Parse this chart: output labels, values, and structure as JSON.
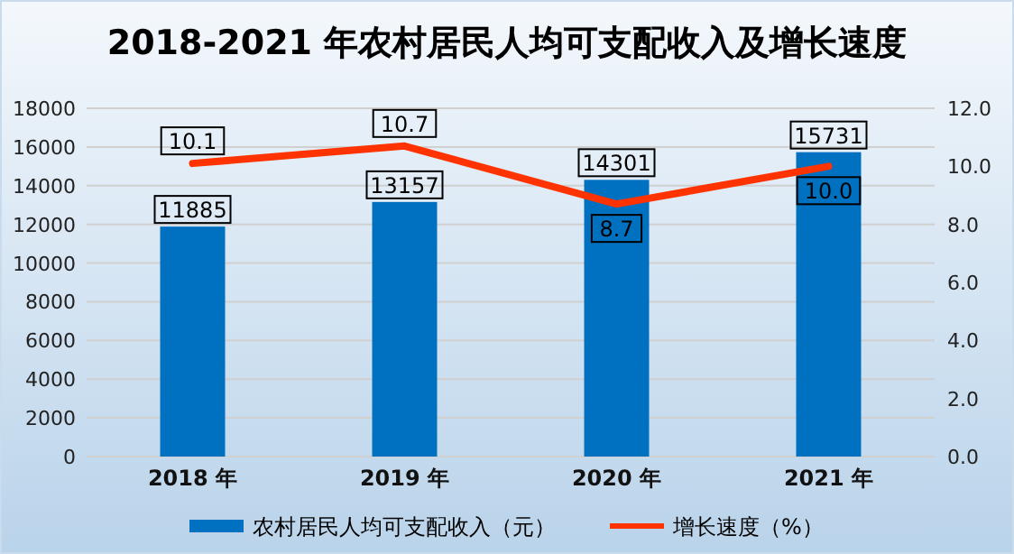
{
  "chart_data": {
    "type": "bar",
    "title": "2018-2021 年农村居民人均可支配收入及增长速度",
    "categories": [
      "2018 年",
      "2019 年",
      "2020 年",
      "2021 年"
    ],
    "series": [
      {
        "name": "农村居民人均可支配收入（元）",
        "color": "#0070c0",
        "values": [
          11885,
          13157,
          14301,
          15731
        ],
        "value_labels": [
          "11885",
          "13157",
          "14301",
          "15731"
        ]
      },
      {
        "name": "增长速度（%）",
        "type": "line",
        "axis": "y2",
        "color": "#ff3300",
        "values": [
          10.1,
          10.7,
          8.7,
          10.0
        ],
        "value_labels": [
          "10.1",
          "10.7",
          "8.7",
          "10.0"
        ]
      }
    ],
    "ylim": [
      0,
      18000
    ],
    "yticks": [
      0,
      2000,
      4000,
      6000,
      8000,
      10000,
      12000,
      14000,
      16000,
      18000
    ],
    "y2lim": [
      0,
      12
    ],
    "y2ticks": [
      {
        "value": 0,
        "label": "0.0"
      },
      {
        "value": 2,
        "label": "2.0"
      },
      {
        "value": 4,
        "label": "4.0"
      },
      {
        "value": 6,
        "label": "6.0"
      },
      {
        "value": 8,
        "label": "8.0"
      },
      {
        "value": 10,
        "label": "10.0"
      },
      {
        "value": 12,
        "label": "12.0"
      }
    ],
    "grid": "y",
    "legend": "bottom"
  }
}
